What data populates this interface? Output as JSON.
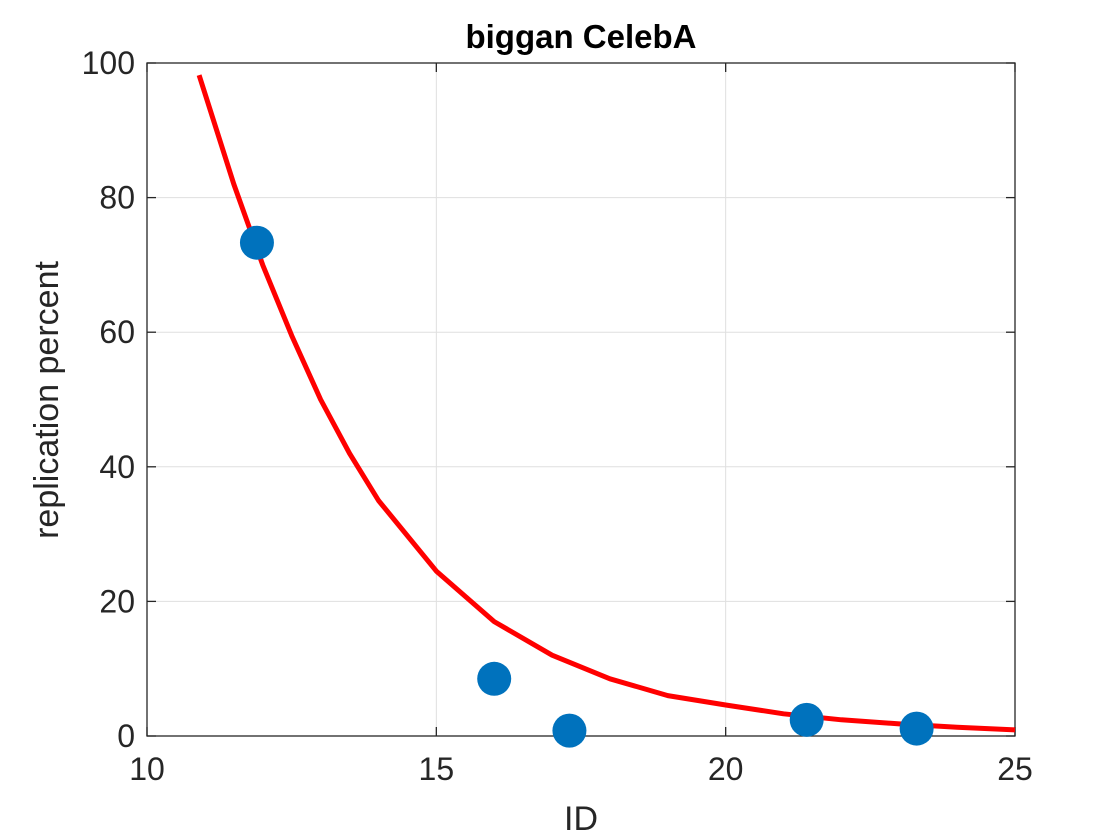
{
  "chart_data": {
    "type": "scatter",
    "title": "biggan CelebA",
    "xlabel": "ID",
    "ylabel": "replication percent",
    "xlim": [
      10,
      25
    ],
    "ylim": [
      0,
      100
    ],
    "xticks": [
      10,
      15,
      20,
      25
    ],
    "yticks": [
      0,
      20,
      40,
      60,
      80,
      100
    ],
    "grid": true,
    "series": [
      {
        "type": "scatter",
        "color": "#0072BD",
        "x": [
          11.9,
          16.0,
          17.3,
          21.4,
          23.3
        ],
        "y": [
          73.3,
          8.5,
          0.8,
          2.4,
          1.1
        ]
      }
    ],
    "fit": {
      "type": "line",
      "color": "#FF0000",
      "x": [
        10.9,
        11.5,
        12.0,
        12.5,
        13.0,
        13.5,
        14.0,
        15.0,
        16.0,
        17.0,
        18.0,
        19.0,
        20.0,
        21.0,
        22.0,
        23.0,
        24.0,
        25.0
      ],
      "y": [
        98.2,
        82.0,
        70.0,
        59.5,
        50.0,
        42.0,
        35.0,
        24.5,
        17.0,
        12.0,
        8.5,
        6.0,
        4.6,
        3.3,
        2.4,
        1.8,
        1.3,
        0.9
      ]
    }
  }
}
